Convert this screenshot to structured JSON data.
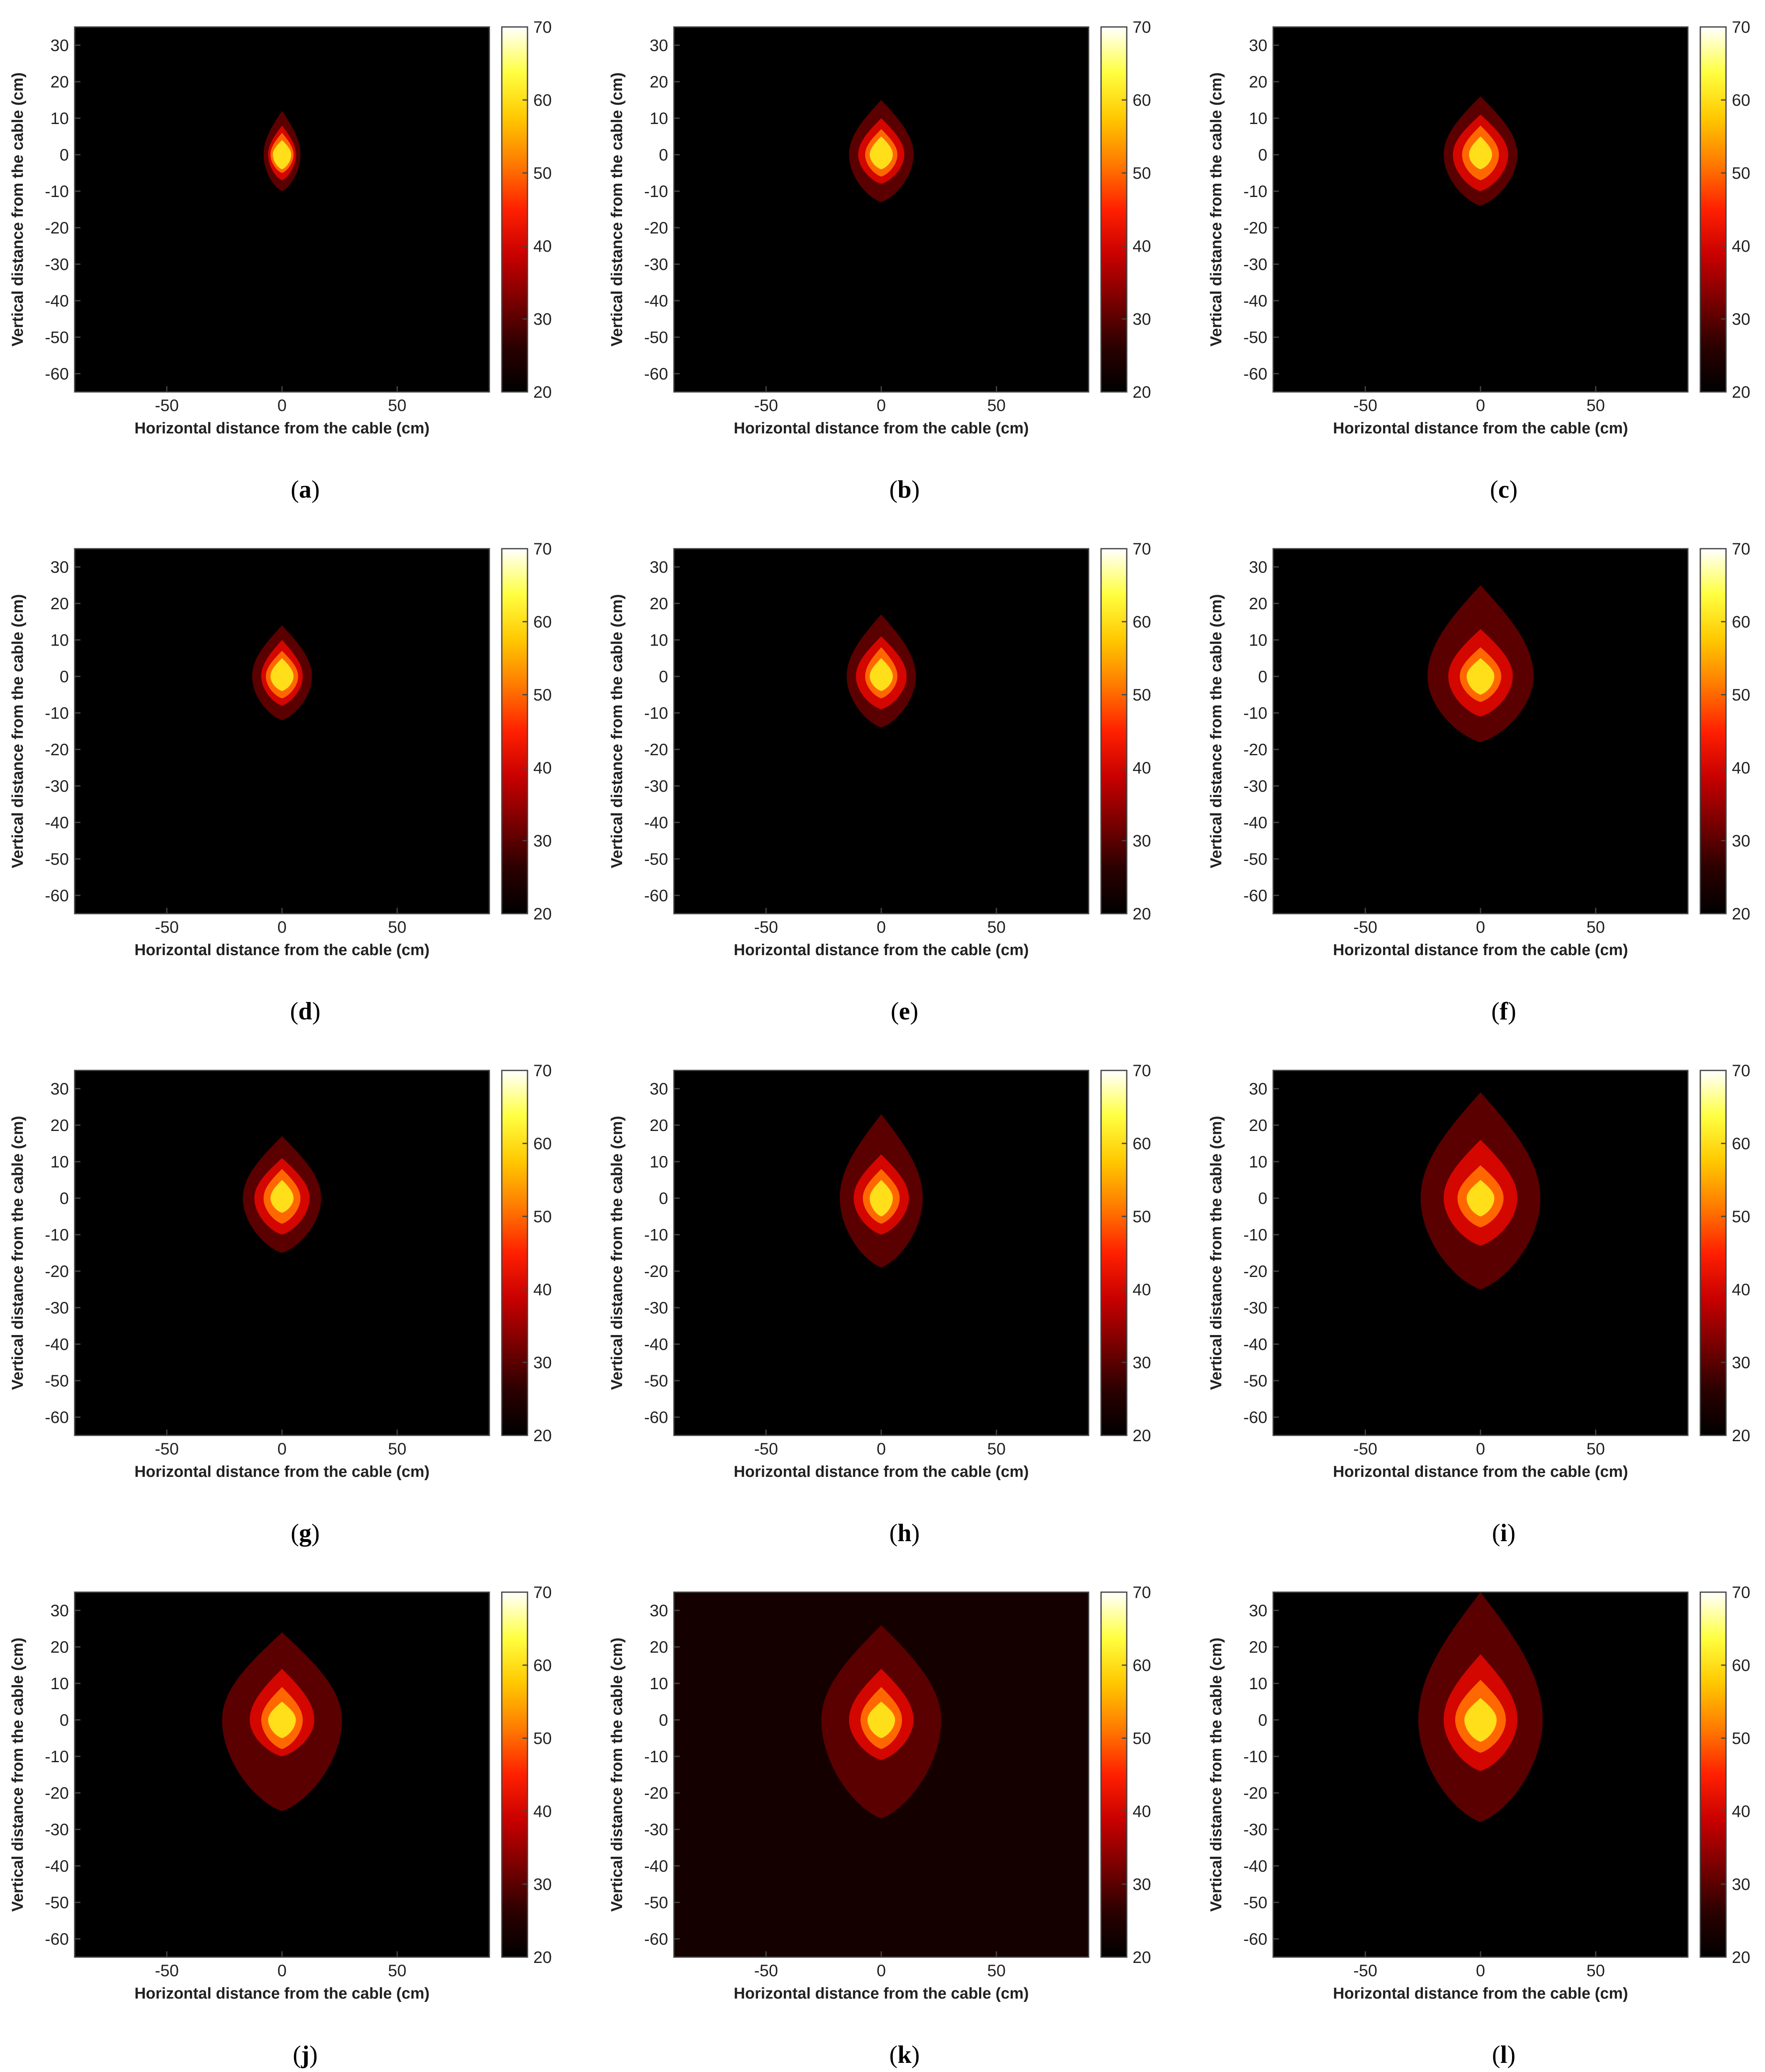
{
  "figure": {
    "colors": {
      "background": "#ffffff",
      "axis": "#444444",
      "text": "#222222",
      "colormap": "hot",
      "colormap_stops": [
        "#000000",
        "#2b0000",
        "#7a0000",
        "#c80000",
        "#ff2000",
        "#ff7a00",
        "#ffc800",
        "#ffff40",
        "#ffffff"
      ]
    }
  },
  "chart_data": [
    {
      "type": "heatmap",
      "caption": "a",
      "xlabel": "Horizontal distance from the cable (cm)",
      "ylabel": "Vertical distance from the cable (cm)",
      "xlim": [
        -90,
        90
      ],
      "ylim": [
        -65,
        35
      ],
      "xticks": [
        -50,
        0,
        50
      ],
      "yticks": [
        30,
        20,
        10,
        0,
        -10,
        -20,
        -30,
        -40,
        -50,
        -60
      ],
      "colorbar": {
        "range": [
          20,
          70
        ],
        "ticks": [
          70,
          60,
          50,
          40,
          30,
          20
        ]
      },
      "background_level": 20,
      "contours": [
        {
          "level": 30,
          "x_halfwidth": 8,
          "top": 12,
          "bottom": -10
        },
        {
          "level": 40,
          "x_halfwidth": 6,
          "top": 8,
          "bottom": -7
        },
        {
          "level": 50,
          "x_halfwidth": 5,
          "top": 6,
          "bottom": -5
        },
        {
          "level": 60,
          "x_halfwidth": 4,
          "top": 4,
          "bottom": -4
        }
      ]
    },
    {
      "type": "heatmap",
      "caption": "b",
      "xlabel": "Horizontal distance from the cable (cm)",
      "ylabel": "Vertical distance from the cable (cm)",
      "xlim": [
        -90,
        90
      ],
      "ylim": [
        -65,
        35
      ],
      "xticks": [
        -50,
        0,
        50
      ],
      "yticks": [
        30,
        20,
        10,
        0,
        -10,
        -20,
        -30,
        -40,
        -50,
        -60
      ],
      "colorbar": {
        "range": [
          20,
          70
        ],
        "ticks": [
          70,
          60,
          50,
          40,
          30,
          20
        ]
      },
      "background_level": 20,
      "contours": [
        {
          "level": 30,
          "x_halfwidth": 14,
          "top": 15,
          "bottom": -13
        },
        {
          "level": 40,
          "x_halfwidth": 10,
          "top": 10,
          "bottom": -8
        },
        {
          "level": 50,
          "x_halfwidth": 7,
          "top": 7,
          "bottom": -6
        },
        {
          "level": 60,
          "x_halfwidth": 5,
          "top": 5,
          "bottom": -4
        }
      ]
    },
    {
      "type": "heatmap",
      "caption": "c",
      "xlabel": "Horizontal distance from the cable (cm)",
      "ylabel": "Vertical distance from the cable (cm)",
      "xlim": [
        -90,
        90
      ],
      "ylim": [
        -65,
        35
      ],
      "xticks": [
        -50,
        0,
        50
      ],
      "yticks": [
        30,
        20,
        10,
        0,
        -10,
        -20,
        -30,
        -40,
        -50,
        -60
      ],
      "colorbar": {
        "range": [
          20,
          70
        ],
        "ticks": [
          70,
          60,
          50,
          40,
          30,
          20
        ]
      },
      "background_level": 20,
      "contours": [
        {
          "level": 30,
          "x_halfwidth": 16,
          "top": 16,
          "bottom": -14
        },
        {
          "level": 40,
          "x_halfwidth": 12,
          "top": 11,
          "bottom": -10
        },
        {
          "level": 50,
          "x_halfwidth": 8,
          "top": 8,
          "bottom": -7
        },
        {
          "level": 60,
          "x_halfwidth": 5,
          "top": 5,
          "bottom": -4
        }
      ]
    },
    {
      "type": "heatmap",
      "caption": "d",
      "xlabel": "Horizontal distance from the cable (cm)",
      "ylabel": "Vertical distance from the cable (cm)",
      "xlim": [
        -90,
        90
      ],
      "ylim": [
        -65,
        35
      ],
      "xticks": [
        -50,
        0,
        50
      ],
      "yticks": [
        30,
        20,
        10,
        0,
        -10,
        -20,
        -30,
        -40,
        -50,
        -60
      ],
      "colorbar": {
        "range": [
          20,
          70
        ],
        "ticks": [
          70,
          60,
          50,
          40,
          30,
          20
        ]
      },
      "background_level": 20,
      "contours": [
        {
          "level": 30,
          "x_halfwidth": 13,
          "top": 14,
          "bottom": -12
        },
        {
          "level": 40,
          "x_halfwidth": 9,
          "top": 10,
          "bottom": -8
        },
        {
          "level": 50,
          "x_halfwidth": 7,
          "top": 7,
          "bottom": -6
        },
        {
          "level": 60,
          "x_halfwidth": 5,
          "top": 5,
          "bottom": -4
        }
      ]
    },
    {
      "type": "heatmap",
      "caption": "e",
      "xlabel": "Horizontal distance from the cable (cm)",
      "ylabel": "Vertical distance from the cable (cm)",
      "xlim": [
        -90,
        90
      ],
      "ylim": [
        -65,
        35
      ],
      "xticks": [
        -50,
        0,
        50
      ],
      "yticks": [
        30,
        20,
        10,
        0,
        -10,
        -20,
        -30,
        -40,
        -50,
        -60
      ],
      "colorbar": {
        "range": [
          20,
          70
        ],
        "ticks": [
          70,
          60,
          50,
          40,
          30,
          20
        ]
      },
      "background_level": 20,
      "contours": [
        {
          "level": 30,
          "x_halfwidth": 15,
          "top": 17,
          "bottom": -14
        },
        {
          "level": 40,
          "x_halfwidth": 11,
          "top": 11,
          "bottom": -9
        },
        {
          "level": 50,
          "x_halfwidth": 7,
          "top": 8,
          "bottom": -6
        },
        {
          "level": 60,
          "x_halfwidth": 5,
          "top": 5,
          "bottom": -4
        }
      ]
    },
    {
      "type": "heatmap",
      "caption": "f",
      "xlabel": "Horizontal distance from the cable (cm)",
      "ylabel": "Vertical distance from the cable (cm)",
      "xlim": [
        -90,
        90
      ],
      "ylim": [
        -65,
        35
      ],
      "xticks": [
        -50,
        0,
        50
      ],
      "yticks": [
        30,
        20,
        10,
        0,
        -10,
        -20,
        -30,
        -40,
        -50,
        -60
      ],
      "colorbar": {
        "range": [
          20,
          70
        ],
        "ticks": [
          70,
          60,
          50,
          40,
          30,
          20
        ]
      },
      "background_level": 20,
      "contours": [
        {
          "level": 30,
          "x_halfwidth": 23,
          "top": 25,
          "bottom": -18
        },
        {
          "level": 40,
          "x_halfwidth": 14,
          "top": 13,
          "bottom": -11
        },
        {
          "level": 50,
          "x_halfwidth": 9,
          "top": 8,
          "bottom": -7
        },
        {
          "level": 60,
          "x_halfwidth": 6,
          "top": 5,
          "bottom": -5
        }
      ]
    },
    {
      "type": "heatmap",
      "caption": "g",
      "xlabel": "Horizontal distance from the cable (cm)",
      "ylabel": "Vertical distance from the cable (cm)",
      "xlim": [
        -90,
        90
      ],
      "ylim": [
        -65,
        35
      ],
      "xticks": [
        -50,
        0,
        50
      ],
      "yticks": [
        30,
        20,
        10,
        0,
        -10,
        -20,
        -30,
        -40,
        -50,
        -60
      ],
      "colorbar": {
        "range": [
          20,
          70
        ],
        "ticks": [
          70,
          60,
          50,
          40,
          30,
          20
        ]
      },
      "background_level": 20,
      "contours": [
        {
          "level": 30,
          "x_halfwidth": 17,
          "top": 17,
          "bottom": -15
        },
        {
          "level": 40,
          "x_halfwidth": 12,
          "top": 11,
          "bottom": -10
        },
        {
          "level": 50,
          "x_halfwidth": 8,
          "top": 8,
          "bottom": -7
        },
        {
          "level": 60,
          "x_halfwidth": 5,
          "top": 5,
          "bottom": -4
        }
      ]
    },
    {
      "type": "heatmap",
      "caption": "h",
      "xlabel": "Horizontal distance from the cable (cm)",
      "ylabel": "Vertical distance from the cable (cm)",
      "xlim": [
        -90,
        90
      ],
      "ylim": [
        -65,
        35
      ],
      "xticks": [
        -50,
        0,
        50
      ],
      "yticks": [
        30,
        20,
        10,
        0,
        -10,
        -20,
        -30,
        -40,
        -50,
        -60
      ],
      "colorbar": {
        "range": [
          20,
          70
        ],
        "ticks": [
          70,
          60,
          50,
          40,
          30,
          20
        ]
      },
      "background_level": 20,
      "contours": [
        {
          "level": 30,
          "x_halfwidth": 18,
          "top": 23,
          "bottom": -19
        },
        {
          "level": 40,
          "x_halfwidth": 12,
          "top": 12,
          "bottom": -10
        },
        {
          "level": 50,
          "x_halfwidth": 8,
          "top": 8,
          "bottom": -7
        },
        {
          "level": 60,
          "x_halfwidth": 5,
          "top": 5,
          "bottom": -5
        }
      ]
    },
    {
      "type": "heatmap",
      "caption": "i",
      "xlabel": "Horizontal distance from the cable (cm)",
      "ylabel": "Vertical distance from the cable (cm)",
      "xlim": [
        -90,
        90
      ],
      "ylim": [
        -65,
        35
      ],
      "xticks": [
        -50,
        0,
        50
      ],
      "yticks": [
        30,
        20,
        10,
        0,
        -10,
        -20,
        -30,
        -40,
        -50,
        -60
      ],
      "colorbar": {
        "range": [
          20,
          70
        ],
        "ticks": [
          70,
          60,
          50,
          40,
          30,
          20
        ]
      },
      "background_level": 20,
      "contours": [
        {
          "level": 30,
          "x_halfwidth": 26,
          "top": 29,
          "bottom": -25
        },
        {
          "level": 40,
          "x_halfwidth": 16,
          "top": 16,
          "bottom": -13
        },
        {
          "level": 50,
          "x_halfwidth": 10,
          "top": 9,
          "bottom": -8
        },
        {
          "level": 60,
          "x_halfwidth": 6,
          "top": 5,
          "bottom": -5
        }
      ]
    },
    {
      "type": "heatmap",
      "caption": "j",
      "xlabel": "Horizontal distance from the cable (cm)",
      "ylabel": "Vertical distance from the cable (cm)",
      "xlim": [
        -90,
        90
      ],
      "ylim": [
        -65,
        35
      ],
      "xticks": [
        -50,
        0,
        50
      ],
      "yticks": [
        30,
        20,
        10,
        0,
        -10,
        -20,
        -30,
        -40,
        -50,
        -60
      ],
      "colorbar": {
        "range": [
          20,
          70
        ],
        "ticks": [
          70,
          60,
          50,
          40,
          30,
          20
        ]
      },
      "background_level": 20,
      "contours": [
        {
          "level": 30,
          "x_halfwidth": 26,
          "top": 24,
          "bottom": -25
        },
        {
          "level": 40,
          "x_halfwidth": 14,
          "top": 14,
          "bottom": -10
        },
        {
          "level": 50,
          "x_halfwidth": 9,
          "top": 9,
          "bottom": -8
        },
        {
          "level": 60,
          "x_halfwidth": 6,
          "top": 5,
          "bottom": -5
        }
      ]
    },
    {
      "type": "heatmap",
      "caption": "k",
      "xlabel": "Horizontal distance from the cable (cm)",
      "ylabel": "Vertical distance from the cable (cm)",
      "xlim": [
        -90,
        90
      ],
      "ylim": [
        -65,
        35
      ],
      "xticks": [
        -50,
        0,
        50
      ],
      "yticks": [
        30,
        20,
        10,
        0,
        -10,
        -20,
        -30,
        -40,
        -50,
        -60
      ],
      "colorbar": {
        "range": [
          20,
          70
        ],
        "ticks": [
          70,
          60,
          50,
          40,
          30,
          20
        ]
      },
      "background_level": 23,
      "contours": [
        {
          "level": 30,
          "x_halfwidth": 26,
          "top": 26,
          "bottom": -27
        },
        {
          "level": 40,
          "x_halfwidth": 14,
          "top": 14,
          "bottom": -11
        },
        {
          "level": 50,
          "x_halfwidth": 9,
          "top": 9,
          "bottom": -8
        },
        {
          "level": 60,
          "x_halfwidth": 6,
          "top": 5,
          "bottom": -5
        }
      ]
    },
    {
      "type": "heatmap",
      "caption": "l",
      "xlabel": "Horizontal distance from the cable (cm)",
      "ylabel": "Vertical distance from the cable (cm)",
      "xlim": [
        -90,
        90
      ],
      "ylim": [
        -65,
        35
      ],
      "xticks": [
        -50,
        0,
        50
      ],
      "yticks": [
        30,
        20,
        10,
        0,
        -10,
        -20,
        -30,
        -40,
        -50,
        -60
      ],
      "colorbar": {
        "range": [
          20,
          70
        ],
        "ticks": [
          70,
          60,
          50,
          40,
          30,
          20
        ]
      },
      "background_level": 20,
      "contours": [
        {
          "level": 30,
          "x_halfwidth": 27,
          "top": 35,
          "bottom": -28
        },
        {
          "level": 40,
          "x_halfwidth": 16,
          "top": 18,
          "bottom": -14
        },
        {
          "level": 50,
          "x_halfwidth": 11,
          "top": 11,
          "bottom": -9
        },
        {
          "level": 60,
          "x_halfwidth": 7,
          "top": 6,
          "bottom": -6
        }
      ]
    }
  ]
}
